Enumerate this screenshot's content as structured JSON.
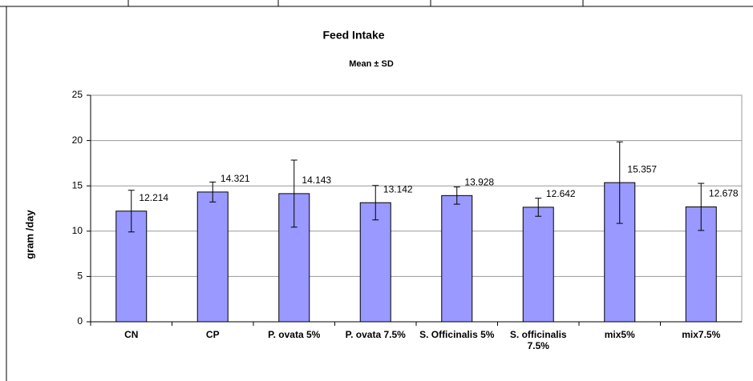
{
  "chart_data": {
    "type": "bar",
    "title": "Feed Intake",
    "subtitle": "Mean ± SD",
    "y_label": "gram /day",
    "categories": [
      "CN",
      "CP",
      "P. ovata 5%",
      "P. ovata 7.5%",
      "S. Officinalis 5%",
      "S. officinalis 7.5%",
      "mix5%",
      "mix7.5%"
    ],
    "values": [
      12.214,
      14.321,
      14.143,
      13.142,
      13.928,
      12.642,
      15.357,
      12.678
    ],
    "errors": [
      2.3,
      1.1,
      3.7,
      1.9,
      0.95,
      1.0,
      4.5,
      2.6
    ],
    "color": "#9999ff",
    "ylim": [
      0,
      25
    ],
    "yticks": [
      0,
      5,
      10,
      15,
      20,
      25
    ],
    "grid": true
  }
}
